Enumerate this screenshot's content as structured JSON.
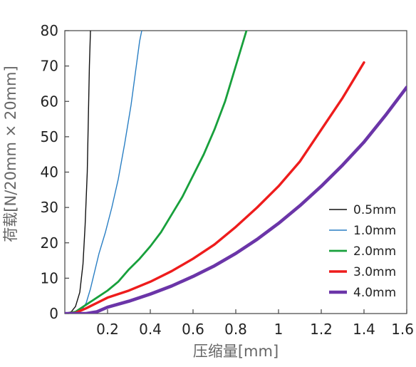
{
  "chart_data": {
    "type": "line",
    "title": "",
    "xlabel": "压缩量[mm]",
    "ylabel": "荷载[N/20mm × 20mm]",
    "xlim": [
      0,
      1.6
    ],
    "ylim": [
      0,
      80
    ],
    "x_ticks": [
      "0.2",
      "0.4",
      "0.6",
      "0.8",
      "1",
      "1.2",
      "1.4",
      "1.6"
    ],
    "x_tick_values": [
      0.2,
      0.4,
      0.6,
      0.8,
      1.0,
      1.2,
      1.4,
      1.6
    ],
    "y_ticks": [
      "0",
      "10",
      "20",
      "30",
      "40",
      "50",
      "60",
      "70",
      "80"
    ],
    "y_tick_values": [
      0,
      10,
      20,
      30,
      40,
      50,
      60,
      70,
      80
    ],
    "grid": false,
    "legend_position": "bottom-right",
    "series": [
      {
        "name": "0.5mm",
        "color": "#111111",
        "weight": "thin",
        "x": [
          0.0,
          0.03,
          0.05,
          0.07,
          0.085,
          0.095,
          0.105,
          0.11,
          0.115,
          0.12
        ],
        "y": [
          0,
          0.5,
          2,
          6,
          14,
          25,
          40,
          55,
          70,
          80
        ]
      },
      {
        "name": "1.0mm",
        "color": "#2a7fc4",
        "weight": "thin",
        "x": [
          0.0,
          0.05,
          0.08,
          0.1,
          0.12,
          0.14,
          0.16,
          0.19,
          0.22,
          0.25,
          0.28,
          0.31,
          0.33,
          0.35,
          0.36
        ],
        "y": [
          0,
          0.2,
          1,
          3,
          7,
          12,
          17,
          23,
          30,
          38,
          48,
          59,
          68,
          77,
          80
        ]
      },
      {
        "name": "2.0mm",
        "color": "#18a03c",
        "weight": "medium",
        "x": [
          0.0,
          0.05,
          0.1,
          0.15,
          0.2,
          0.25,
          0.3,
          0.35,
          0.4,
          0.45,
          0.5,
          0.55,
          0.6,
          0.65,
          0.7,
          0.75,
          0.8,
          0.85
        ],
        "y": [
          0,
          0.5,
          2.5,
          4.5,
          6.5,
          9,
          12.5,
          15.5,
          19,
          23,
          28,
          33,
          39,
          45,
          52,
          60,
          70,
          80
        ]
      },
      {
        "name": "3.0mm",
        "color": "#ee1c1c",
        "weight": "thick",
        "x": [
          0.0,
          0.05,
          0.1,
          0.15,
          0.2,
          0.3,
          0.4,
          0.5,
          0.6,
          0.7,
          0.8,
          0.9,
          1.0,
          1.1,
          1.2,
          1.3,
          1.4
        ],
        "y": [
          0,
          0.2,
          1.5,
          3,
          4.5,
          6.5,
          9,
          12,
          15.5,
          19.5,
          24.5,
          30,
          36,
          43,
          52,
          61,
          71
        ]
      },
      {
        "name": "4.0mm",
        "color": "#6b35a8",
        "weight": "xthick",
        "x": [
          0.0,
          0.1,
          0.15,
          0.2,
          0.3,
          0.4,
          0.5,
          0.6,
          0.7,
          0.8,
          0.9,
          1.0,
          1.1,
          1.2,
          1.3,
          1.4,
          1.5,
          1.6
        ],
        "y": [
          0,
          0,
          0.5,
          1.8,
          3.5,
          5.5,
          7.8,
          10.5,
          13.5,
          17,
          21,
          25.5,
          30.5,
          36,
          42,
          48.5,
          56,
          64
        ]
      }
    ]
  }
}
